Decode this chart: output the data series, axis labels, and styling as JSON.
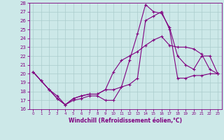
{
  "xlabel": "Windchill (Refroidissement éolien,°C)",
  "bg_color": "#cce8e8",
  "line_color": "#800080",
  "grid_color": "#aacccc",
  "xlim": [
    -0.5,
    23.5
  ],
  "ylim": [
    16,
    28
  ],
  "yticks": [
    16,
    17,
    18,
    19,
    20,
    21,
    22,
    23,
    24,
    25,
    26,
    27,
    28
  ],
  "xticks": [
    0,
    1,
    2,
    3,
    4,
    5,
    6,
    7,
    8,
    9,
    10,
    11,
    12,
    13,
    14,
    15,
    16,
    17,
    18,
    19,
    20,
    21,
    22,
    23
  ],
  "series1_x": [
    0,
    1,
    2,
    3,
    4,
    5,
    6,
    7,
    8,
    9,
    10,
    11,
    12,
    13,
    14,
    15,
    16,
    17,
    18,
    19,
    20,
    21,
    22,
    23
  ],
  "series1_y": [
    20.2,
    19.2,
    18.2,
    17.2,
    16.5,
    17.2,
    17.5,
    17.7,
    17.7,
    18.2,
    20.2,
    21.5,
    22.0,
    22.5,
    23.2,
    23.8,
    24.2,
    23.2,
    23.0,
    23.0,
    22.8,
    22.2,
    20.5,
    20.0
  ],
  "series2_x": [
    0,
    1,
    2,
    3,
    4,
    5,
    6,
    7,
    8,
    9,
    10,
    11,
    12,
    13,
    14,
    15,
    16,
    17,
    18,
    19,
    20,
    21,
    22,
    23
  ],
  "series2_y": [
    20.2,
    19.2,
    18.2,
    17.2,
    16.5,
    17.0,
    17.2,
    17.5,
    17.5,
    17.0,
    17.0,
    18.5,
    21.5,
    24.5,
    27.8,
    27.0,
    26.8,
    25.2,
    22.0,
    21.0,
    20.5,
    22.0,
    22.0,
    20.0
  ],
  "series3_x": [
    0,
    1,
    2,
    3,
    4,
    5,
    6,
    7,
    8,
    9,
    10,
    11,
    12,
    13,
    14,
    15,
    16,
    17,
    18,
    19,
    20,
    21,
    22,
    23
  ],
  "series3_y": [
    20.2,
    19.2,
    18.2,
    17.5,
    16.5,
    17.2,
    17.5,
    17.7,
    17.7,
    18.2,
    18.2,
    18.5,
    18.8,
    19.5,
    26.0,
    26.5,
    27.0,
    25.0,
    19.5,
    19.5,
    19.8,
    19.8,
    20.0,
    20.0
  ]
}
